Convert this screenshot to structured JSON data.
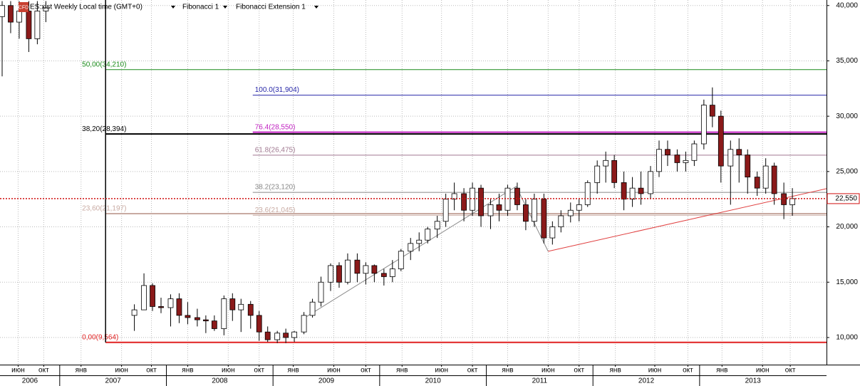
{
  "chart_data": {
    "type": "candlestick",
    "header": {
      "symbol": "ES:xist Weekly Local time (GMT+0)",
      "tool1": "Fibonacci 1",
      "tool2": "Fibonacci Extension 1"
    },
    "badge": "CFD",
    "xlim": [
      2006.44,
      2014.19
    ],
    "ylim": [
      7550,
      40500
    ],
    "grid": true,
    "yticks": [
      {
        "value": 10000,
        "label": "10,000"
      },
      {
        "value": 15000,
        "label": "15,000"
      },
      {
        "value": 20000,
        "label": "20,000"
      },
      {
        "value": 25000,
        "label": "25,000"
      },
      {
        "value": 30000,
        "label": "30,000"
      },
      {
        "value": 35000,
        "label": "35,000"
      },
      {
        "value": 40000,
        "label": "40,000"
      }
    ],
    "xticks": [
      {
        "value": 2006.61,
        "label": "июн"
      },
      {
        "value": 2006.85,
        "label": "окт"
      },
      {
        "value": 2007.2,
        "label": "янв"
      },
      {
        "value": 2007.58,
        "label": "июн"
      },
      {
        "value": 2007.86,
        "label": "окт"
      },
      {
        "value": 2008.2,
        "label": "янв"
      },
      {
        "value": 2008.58,
        "label": "июн"
      },
      {
        "value": 2008.87,
        "label": "окт"
      },
      {
        "value": 2009.19,
        "label": "янв"
      },
      {
        "value": 2009.57,
        "label": "июн"
      },
      {
        "value": 2009.87,
        "label": "окт"
      },
      {
        "value": 2010.21,
        "label": "янв"
      },
      {
        "value": 2010.58,
        "label": "июн"
      },
      {
        "value": 2010.87,
        "label": "окт"
      },
      {
        "value": 2011.2,
        "label": "янв"
      },
      {
        "value": 2011.58,
        "label": "июн"
      },
      {
        "value": 2011.87,
        "label": "окт"
      },
      {
        "value": 2012.21,
        "label": "янв"
      },
      {
        "value": 2012.58,
        "label": "июн"
      },
      {
        "value": 2012.89,
        "label": "окт"
      },
      {
        "value": 2013.21,
        "label": "янв"
      },
      {
        "value": 2013.59,
        "label": "июн"
      },
      {
        "value": 2013.85,
        "label": "окт"
      }
    ],
    "year_ticks": [
      2006,
      2007,
      2008,
      2009,
      2010,
      2011,
      2012,
      2013
    ],
    "candles": {
      "x": [
        2006.46,
        2006.54,
        2006.62,
        2006.71,
        2006.79,
        2006.87,
        2007.7,
        2007.79,
        2007.87,
        2007.95,
        2008.04,
        2008.12,
        2008.2,
        2008.29,
        2008.37,
        2008.45,
        2008.54,
        2008.62,
        2008.7,
        2008.79,
        2008.87,
        2008.95,
        2009.04,
        2009.12,
        2009.2,
        2009.29,
        2009.37,
        2009.45,
        2009.54,
        2009.62,
        2009.7,
        2009.79,
        2009.87,
        2009.95,
        2010.04,
        2010.12,
        2010.2,
        2010.29,
        2010.37,
        2010.45,
        2010.54,
        2010.62,
        2010.7,
        2010.79,
        2010.87,
        2010.95,
        2011.04,
        2011.12,
        2011.2,
        2011.29,
        2011.37,
        2011.45,
        2011.54,
        2011.62,
        2011.7,
        2011.79,
        2011.87,
        2011.95,
        2012.04,
        2012.12,
        2012.2,
        2012.29,
        2012.37,
        2012.45,
        2012.54,
        2012.62,
        2012.7,
        2012.79,
        2012.87,
        2012.95,
        2013.04,
        2013.12,
        2013.2,
        2013.29,
        2013.37,
        2013.45,
        2013.54,
        2013.62,
        2013.7,
        2013.79,
        2013.87
      ],
      "open": [
        39000,
        40000,
        38500,
        39500,
        37000,
        39500,
        12000,
        12500,
        14700,
        12800,
        12700,
        13500,
        12000,
        11800,
        11600,
        11500,
        10800,
        13500,
        12500,
        13000,
        12000,
        10500,
        9800,
        10400,
        10000,
        10500,
        12000,
        13200,
        15000,
        16500,
        15000,
        17000,
        15800,
        16500,
        15800,
        15500,
        16200,
        17800,
        18500,
        18800,
        19800,
        20500,
        22500,
        23000,
        21500,
        23500,
        21000,
        22000,
        21500,
        23500,
        22000,
        20500,
        22500,
        19000,
        20000,
        21000,
        21500,
        22000,
        24000,
        25500,
        26000,
        24000,
        22500,
        23500,
        23000,
        25000,
        27000,
        26500,
        25800,
        26000,
        27500,
        31000,
        30000,
        25500,
        27000,
        26500,
        24500,
        23500,
        25500,
        23000,
        22000
      ],
      "high": [
        40400,
        40400,
        40400,
        40400,
        40400,
        40400,
        13000,
        15800,
        14900,
        13600,
        13900,
        14000,
        13200,
        12600,
        12000,
        12000,
        13800,
        14000,
        13500,
        13300,
        12400,
        11000,
        10600,
        10800,
        10600,
        12300,
        13500,
        15500,
        16700,
        16800,
        17600,
        17600,
        16800,
        16600,
        16200,
        17000,
        18000,
        19000,
        19500,
        20000,
        21000,
        23000,
        24000,
        23500,
        24000,
        23800,
        22500,
        23000,
        23800,
        24000,
        22500,
        23000,
        23000,
        20500,
        21500,
        22200,
        22500,
        24200,
        26000,
        26800,
        26500,
        25000,
        24500,
        25000,
        25500,
        27800,
        27800,
        27000,
        26800,
        27800,
        31500,
        32600,
        30500,
        27800,
        28000,
        27000,
        25000,
        26200,
        25800,
        24000,
        23500
      ],
      "low": [
        33600,
        37500,
        37000,
        35800,
        36500,
        38500,
        10600,
        12500,
        12400,
        12200,
        11000,
        11300,
        11200,
        11000,
        10400,
        10600,
        10200,
        11500,
        10500,
        10800,
        9700,
        9600,
        9500,
        9500,
        9600,
        10300,
        11800,
        12800,
        14200,
        14500,
        14800,
        15000,
        14800,
        15000,
        14700,
        15000,
        16000,
        17000,
        17800,
        18500,
        19000,
        20000,
        21500,
        20500,
        21000,
        20000,
        19800,
        20500,
        21000,
        21500,
        19700,
        20000,
        18500,
        18400,
        19500,
        20400,
        20500,
        21800,
        23000,
        24000,
        23500,
        21500,
        21800,
        22000,
        22500,
        24500,
        25500,
        25000,
        25000,
        25500,
        27000,
        29000,
        24000,
        22000,
        24000,
        23000,
        22800,
        23000,
        22000,
        20700,
        21000
      ],
      "close": [
        40000,
        38500,
        39500,
        37000,
        39500,
        39800,
        12500,
        14700,
        12800,
        12700,
        13500,
        12000,
        11800,
        11600,
        11500,
        10800,
        13500,
        12500,
        13000,
        12000,
        10500,
        9800,
        10400,
        10000,
        10500,
        12000,
        13200,
        15000,
        16500,
        15000,
        17000,
        15800,
        16500,
        15800,
        15500,
        16200,
        17800,
        18500,
        18800,
        19800,
        20500,
        22500,
        23000,
        21500,
        23500,
        21000,
        22000,
        21500,
        23500,
        22000,
        20500,
        22500,
        19000,
        20000,
        21000,
        21500,
        22000,
        24000,
        25500,
        26000,
        24000,
        22500,
        23500,
        23000,
        25000,
        27000,
        26500,
        25800,
        26000,
        27500,
        31000,
        30000,
        25500,
        27000,
        26500,
        24500,
        23500,
        25500,
        23000,
        22000,
        22550
      ]
    },
    "fibonacci": {
      "start_x": 2007.43,
      "levels": [
        {
          "label": "50,00(34,210)",
          "value": 34210,
          "color": "#1a8a1a",
          "width": 1
        },
        {
          "label": "38,20(28,394)",
          "value": 28394,
          "color": "#000000",
          "width": 2
        },
        {
          "label": "23,60(21,197)",
          "value": 21197,
          "color": "#c8aaa2",
          "width": 2
        },
        {
          "label": "0,00(9,564)",
          "value": 9564,
          "color": "#e02020",
          "width": 2
        }
      ]
    },
    "fibonacci_extension": {
      "start_x": 2008.81,
      "levels": [
        {
          "label": "100.0(31,904)",
          "value": 31904,
          "color": "#2828a8",
          "width": 1
        },
        {
          "label": "76.4(28,550)",
          "value": 28550,
          "color": "#c020c0",
          "width": 2
        },
        {
          "label": "61.8(26,475)",
          "value": 26475,
          "color": "#a07890",
          "width": 1
        },
        {
          "label": "38.2(23,120)",
          "value": 23120,
          "color": "#888888",
          "width": 1
        },
        {
          "label": "23.6(21,045)",
          "value": 21045,
          "color": "#c8aaa2",
          "width": 1
        }
      ]
    },
    "extension_points": {
      "x": [
        2009.31,
        2011.28,
        2011.58
      ],
      "y": [
        11870,
        23650,
        17790
      ],
      "color": "#888888"
    },
    "trend_line": {
      "x": [
        2011.58,
        2014.19
      ],
      "y": [
        17790,
        23450
      ],
      "color": "#e04040"
    },
    "current_price": {
      "value": 22550,
      "label": "22,550",
      "color": "#d01010"
    }
  }
}
